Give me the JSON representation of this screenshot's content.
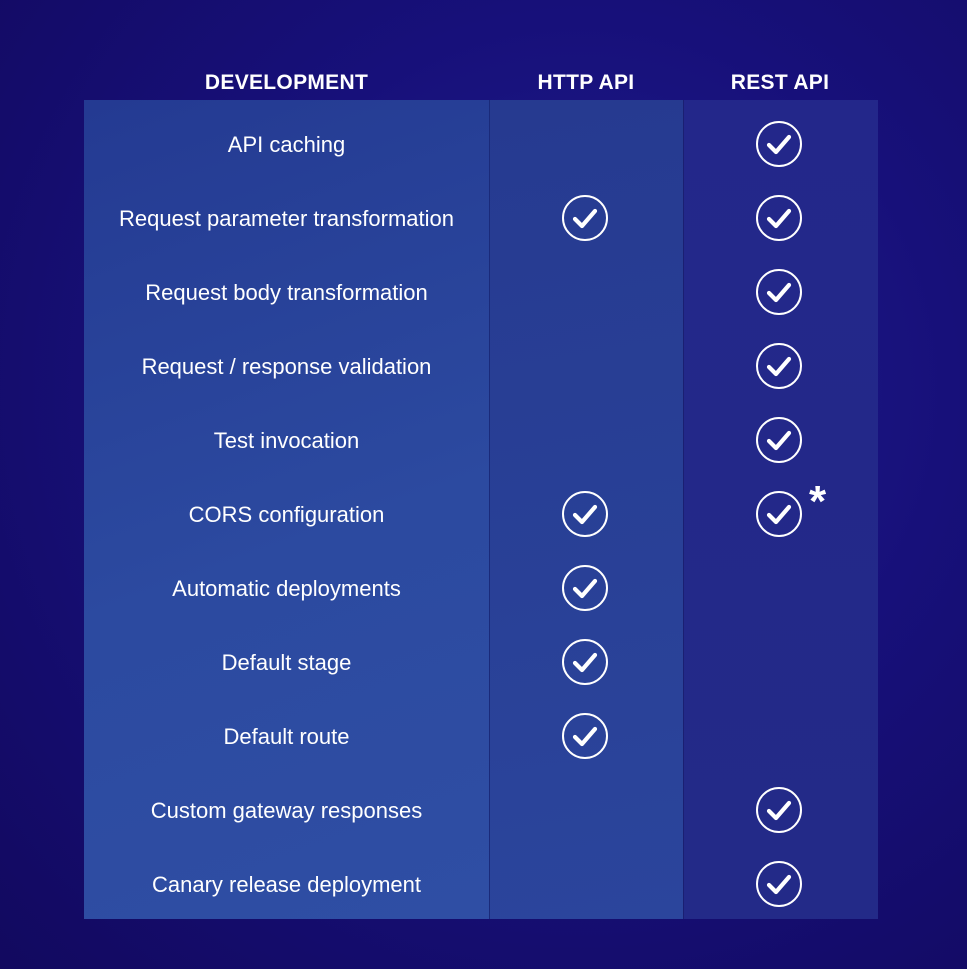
{
  "headers": {
    "development": "DEVELOPMENT",
    "http_api": "HTTP API",
    "rest_api": "REST API"
  },
  "rows": [
    {
      "label": "API caching",
      "http": false,
      "rest": true
    },
    {
      "label": "Request parameter transformation",
      "http": true,
      "rest": true
    },
    {
      "label": "Request body transformation",
      "http": false,
      "rest": true
    },
    {
      "label": "Request / response validation",
      "http": false,
      "rest": true
    },
    {
      "label": "Test invocation",
      "http": false,
      "rest": true
    },
    {
      "label": "CORS configuration",
      "http": true,
      "rest": true,
      "rest_note": "*"
    },
    {
      "label": "Automatic deployments",
      "http": true,
      "rest": false
    },
    {
      "label": "Default stage",
      "http": true,
      "rest": false
    },
    {
      "label": "Default route",
      "http": true,
      "rest": false
    },
    {
      "label": "Custom gateway responses",
      "http": false,
      "rest": true
    },
    {
      "label": "Canary release deployment",
      "http": false,
      "rest": true
    }
  ],
  "icons": {
    "supported": "check-circle-icon"
  },
  "colors": {
    "background": "#17107a",
    "text": "#ffffff"
  }
}
